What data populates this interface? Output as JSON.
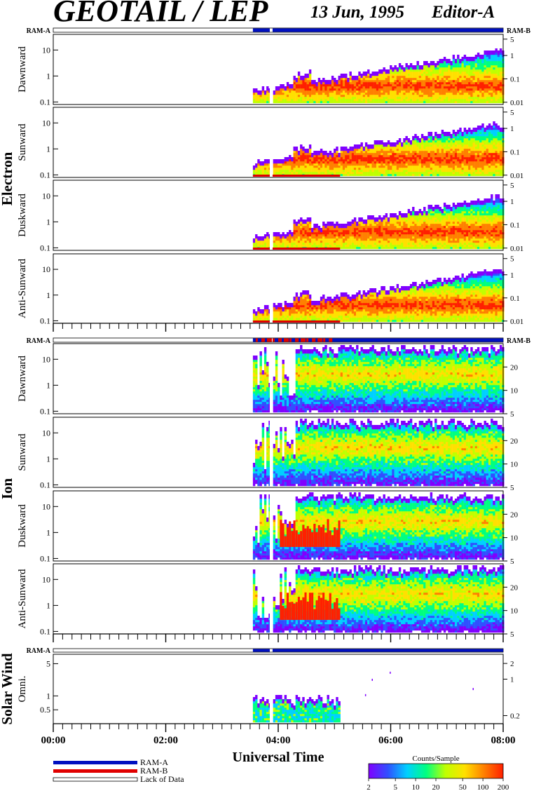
{
  "header": {
    "title": "GEOTAIL / LEP",
    "date": "13 Jun, 1995",
    "editor": "Editor-A"
  },
  "legend": {
    "ram_a": "RAM-A",
    "ram_b": "RAM-B",
    "lack_of_data": "Lack of Data",
    "colors": {
      "ram_a": "#0010c0",
      "ram_b": "#e00000",
      "lack": "#ffffff"
    }
  },
  "colorbar": {
    "title": "Counts/Sample",
    "ticks": [
      "2",
      "5",
      "10",
      "20",
      "50",
      "100",
      "200"
    ],
    "tick_values": [
      2,
      5,
      10,
      20,
      50,
      100,
      200
    ],
    "range": [
      2,
      200
    ],
    "scale": "log",
    "colors": [
      "#8000ff",
      "#3050ff",
      "#00d0ff",
      "#00ff80",
      "#c0ff00",
      "#ffe000",
      "#ff8000",
      "#ff2000"
    ]
  },
  "axis": {
    "xlabel": "Universal Time",
    "xticks": [
      "00:00",
      "02:00",
      "04:00",
      "06:00",
      "08:00"
    ],
    "xrange_hours": [
      0,
      8
    ]
  },
  "groups": [
    {
      "label": "Electron",
      "ram_left": "RAM-A",
      "ram_right": "RAM-B"
    },
    {
      "label": "Ion",
      "ram_left": "RAM-A",
      "ram_right": "RAM-B"
    },
    {
      "label": "Solar Wind",
      "ram_left": "RAM-A",
      "ram_right": ""
    }
  ],
  "chart_data": {
    "type": "heatmap",
    "x_unit": "hours UT",
    "data_start_hour": 3.55,
    "data_gap_hours": [
      3.85,
      3.9
    ],
    "panels": [
      {
        "group": "Electron",
        "ylabel": "Dawnward",
        "yticks": [
          "0.1",
          "1",
          "10"
        ],
        "ytick_values": [
          0.1,
          1,
          10
        ],
        "ylim": [
          0.08,
          40
        ],
        "right_ticks": [
          "5",
          "1",
          "0.1",
          "0.01"
        ],
        "right_tick_values": [
          5,
          1,
          0.1,
          0.01
        ],
        "right_range": [
          0.008,
          8
        ],
        "species": "e",
        "ram_b_bottom": false
      },
      {
        "group": "Electron",
        "ylabel": "Sunward",
        "yticks": [
          "0.1",
          "1",
          "10"
        ],
        "ytick_values": [
          0.1,
          1,
          10
        ],
        "ylim": [
          0.08,
          40
        ],
        "right_ticks": [
          "5",
          "1",
          "0.1",
          "0.01"
        ],
        "right_tick_values": [
          5,
          1,
          0.1,
          0.01
        ],
        "right_range": [
          0.008,
          8
        ],
        "species": "e",
        "ram_b_bottom": true
      },
      {
        "group": "Electron",
        "ylabel": "Duskward",
        "yticks": [
          "0.1",
          "1",
          "10"
        ],
        "ytick_values": [
          0.1,
          1,
          10
        ],
        "ylim": [
          0.08,
          40
        ],
        "right_ticks": [
          "5",
          "1",
          "0.1",
          "0.01"
        ],
        "right_tick_values": [
          5,
          1,
          0.1,
          0.01
        ],
        "right_range": [
          0.008,
          8
        ],
        "species": "e",
        "ram_b_bottom": true
      },
      {
        "group": "Electron",
        "ylabel": "Anti-Sunward",
        "yticks": [
          "0.1",
          "1",
          "10"
        ],
        "ytick_values": [
          0.1,
          1,
          10
        ],
        "ylim": [
          0.08,
          40
        ],
        "right_ticks": [
          "5",
          "1",
          "0.1",
          "0.01"
        ],
        "right_tick_values": [
          5,
          1,
          0.1,
          0.01
        ],
        "right_range": [
          0.008,
          8
        ],
        "species": "e",
        "ram_b_bottom": true
      },
      {
        "group": "Ion",
        "ylabel": "Dawnward",
        "yticks": [
          "0.1",
          "1",
          "10"
        ],
        "ytick_values": [
          0.1,
          1,
          10
        ],
        "ylim": [
          0.08,
          40
        ],
        "right_ticks": [
          "20",
          "10",
          "5"
        ],
        "right_tick_values": [
          20,
          10,
          5
        ],
        "right_range": [
          5,
          40
        ],
        "species": "i",
        "ram_b_bottom": false
      },
      {
        "group": "Ion",
        "ylabel": "Sunward",
        "yticks": [
          "0.1",
          "1",
          "10"
        ],
        "ytick_values": [
          0.1,
          1,
          10
        ],
        "ylim": [
          0.08,
          40
        ],
        "right_ticks": [
          "20",
          "10",
          "5"
        ],
        "right_tick_values": [
          20,
          10,
          5
        ],
        "right_range": [
          5,
          40
        ],
        "species": "i",
        "ram_b_bottom": false
      },
      {
        "group": "Ion",
        "ylabel": "Duskward",
        "yticks": [
          "0.1",
          "1",
          "10"
        ],
        "ytick_values": [
          0.1,
          1,
          10
        ],
        "ylim": [
          0.08,
          40
        ],
        "right_ticks": [
          "20",
          "10",
          "5"
        ],
        "right_tick_values": [
          20,
          10,
          5
        ],
        "right_range": [
          5,
          40
        ],
        "species": "i",
        "ram_b_bottom": false
      },
      {
        "group": "Ion",
        "ylabel": "Anti-Sunward",
        "yticks": [
          "0.1",
          "1",
          "10"
        ],
        "ytick_values": [
          0.1,
          1,
          10
        ],
        "ylim": [
          0.08,
          40
        ],
        "right_ticks": [
          "20",
          "10",
          "5"
        ],
        "right_tick_values": [
          20,
          10,
          5
        ],
        "right_range": [
          5,
          40
        ],
        "species": "i",
        "ram_b_bottom": false
      },
      {
        "group": "Solar Wind",
        "ylabel": "Omni.",
        "yticks": [
          "0.5",
          "1",
          "5"
        ],
        "ytick_values": [
          0.5,
          1,
          5
        ],
        "ylim": [
          0.25,
          8
        ],
        "right_ticks": [
          "2",
          "1",
          "0.2"
        ],
        "right_tick_values": [
          2,
          1,
          0.2
        ],
        "right_range": [
          0.14,
          3
        ],
        "species": "sw",
        "ram_b_bottom": false
      }
    ]
  }
}
